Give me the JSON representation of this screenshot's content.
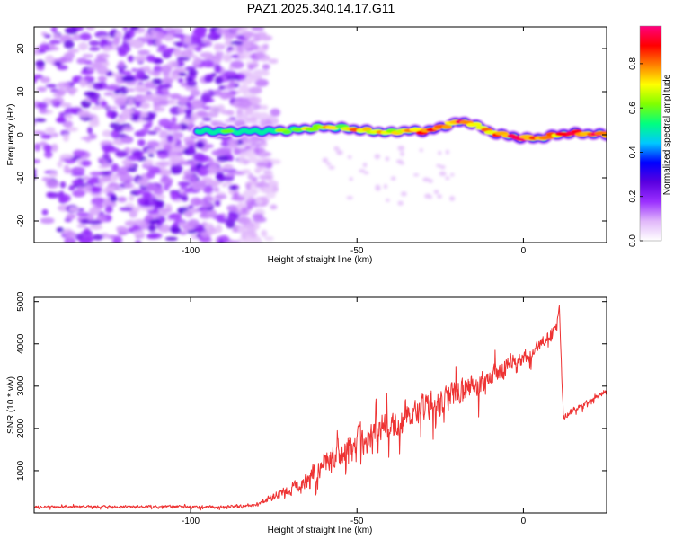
{
  "title": "PAZ1.2025.340.14.17.G11",
  "chart_data": [
    {
      "type": "heatmap",
      "panel": "top",
      "xlabel": "Height of straight line (km)",
      "ylabel": "Frequency (Hz)",
      "xlim": [
        -147,
        25
      ],
      "ylim": [
        -25,
        25
      ],
      "xticks": [
        -100,
        -50,
        0
      ],
      "yticks": [
        -20,
        -10,
        0,
        10,
        20
      ],
      "colorbar": {
        "label": "Normalized spectral amplitude",
        "range": [
          0.0,
          0.97
        ],
        "ticks": [
          "0.0",
          "0.2",
          "0.4",
          "0.6",
          "0.8"
        ],
        "colors": [
          "#ffffff",
          "#e1b8fa",
          "#9b30ff",
          "#5a00e0",
          "#0000ff",
          "#00c8ff",
          "#00ff80",
          "#80ff00",
          "#ffff00",
          "#ff8000",
          "#ff0000",
          "#ff0080"
        ]
      },
      "noise_region_x": [
        -147,
        -76
      ],
      "signal_track": {
        "x": [
          -98,
          -90,
          -80,
          -70,
          -60,
          -55,
          -50,
          -45,
          -40,
          -35,
          -30,
          -25,
          -20,
          -15,
          -10,
          -5,
          0,
          5,
          10,
          15,
          20,
          25
        ],
        "freq": [
          0.8,
          0.8,
          0.8,
          1.0,
          1.8,
          1.6,
          1.2,
          0.8,
          0.5,
          1.0,
          0.8,
          1.6,
          3.0,
          2.6,
          0.6,
          -0.2,
          -0.8,
          -0.8,
          0.0,
          0.4,
          0.2,
          0.0
        ],
        "amp": [
          0.4,
          0.55,
          0.5,
          0.65,
          0.75,
          0.7,
          0.8,
          0.75,
          0.7,
          0.8,
          0.85,
          0.8,
          0.9,
          0.85,
          0.8,
          0.9,
          0.95,
          0.9,
          0.85,
          0.9,
          0.95,
          0.9
        ]
      }
    },
    {
      "type": "line",
      "panel": "bottom",
      "xlabel": "Height of straight line (km)",
      "ylabel": "SNR (10 * v/v)",
      "xlim": [
        -147,
        25
      ],
      "ylim": [
        0,
        5100
      ],
      "xticks": [
        -100,
        -50,
        0
      ],
      "yticks": [
        1000,
        2000,
        3000,
        4000,
        5000
      ],
      "series": [
        {
          "name": "SNR",
          "color": "#ee3333",
          "x": [
            -147,
            -120,
            -90,
            -80,
            -75,
            -70,
            -65,
            -60,
            -55,
            -50,
            -45,
            -40,
            -35,
            -30,
            -25,
            -20,
            -15,
            -10,
            -5,
            0,
            5,
            10,
            10.8,
            12,
            15,
            20,
            25
          ],
          "baseline": [
            150,
            150,
            150,
            180,
            400,
            550,
            800,
            1100,
            1400,
            1700,
            1900,
            2000,
            2300,
            2500,
            2600,
            2900,
            2950,
            3200,
            3500,
            3700,
            4000,
            4450,
            4850,
            2250,
            2450,
            2650,
            2900
          ],
          "noise": [
            60,
            60,
            60,
            80,
            200,
            300,
            450,
            600,
            700,
            750,
            700,
            700,
            650,
            650,
            650,
            600,
            600,
            550,
            450,
            380,
            300,
            250,
            150,
            150,
            120,
            120,
            120
          ]
        }
      ]
    }
  ]
}
